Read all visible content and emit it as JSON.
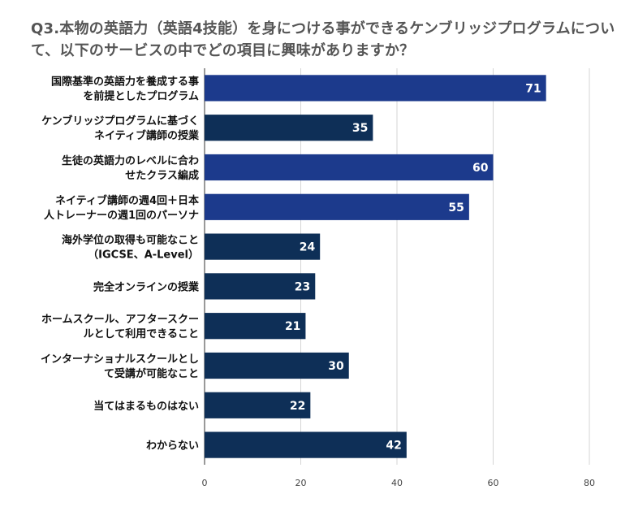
{
  "chart_data": {
    "type": "bar",
    "orientation": "horizontal",
    "title": "Q3.本物の英語力（英語4技能）を身につける事ができるケンブリッジプログラムについて、以下のサービスの中でどの項目に興味がありますか？",
    "xlabel": "",
    "ylabel": "",
    "categories": [
      [
        "国際基準の英語力を養成する事",
        "を前提としたプログラム"
      ],
      [
        "ケンブリッジプログラムに基づく",
        "ネイティブ講師の授業"
      ],
      [
        "生徒の英語力のレベルに合わ",
        "せたクラス編成"
      ],
      [
        "ネイティブ講師の週4回＋日本",
        "人トレーナーの週1回のパーソナ"
      ],
      [
        "海外学位の取得も可能なこと",
        "（IGCSE、A-Level）"
      ],
      [
        "完全オンラインの授業"
      ],
      [
        "ホームスクール、アフタースクー",
        "ルとして利用できること"
      ],
      [
        "インターナショナルスクールとし",
        "て受講が可能なこと"
      ],
      [
        "当てはまるものはない"
      ],
      [
        "わからない"
      ]
    ],
    "values": [
      71,
      35,
      60,
      55,
      24,
      23,
      21,
      30,
      22,
      42
    ],
    "bar_colors": [
      "#1c3a8c",
      "#0e2f57",
      "#1c3a8c",
      "#1c3a8c",
      "#0e2f57",
      "#0e2f57",
      "#0e2f57",
      "#0e2f57",
      "#0e2f57",
      "#0e2f57"
    ],
    "xlim": [
      0,
      80
    ],
    "xticks": [
      0,
      20,
      40,
      60,
      80
    ],
    "grid": true,
    "legend": "none"
  }
}
